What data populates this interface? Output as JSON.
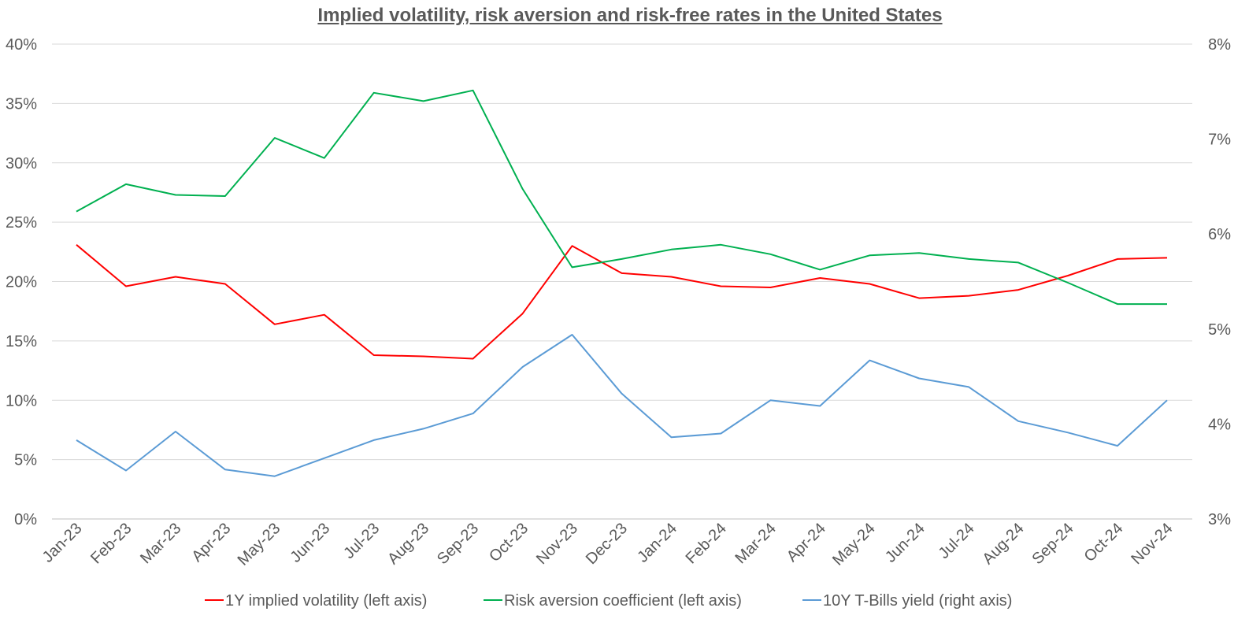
{
  "chart_data": {
    "type": "line",
    "title": "Implied volatility, risk aversion and risk-free rates in the United States",
    "categories": [
      "Jan-23",
      "Feb-23",
      "Mar-23",
      "Apr-23",
      "May-23",
      "Jun-23",
      "Jul-23",
      "Aug-23",
      "Sep-23",
      "Oct-23",
      "Nov-23",
      "Dec-23",
      "Jan-24",
      "Feb-24",
      "Mar-24",
      "Apr-24",
      "May-24",
      "Jun-24",
      "Jul-24",
      "Aug-24",
      "Sep-24",
      "Oct-24",
      "Nov-24"
    ],
    "left_axis": {
      "ylim": [
        0,
        0.4
      ],
      "ticks": [
        0,
        0.05,
        0.1,
        0.15,
        0.2,
        0.25,
        0.3,
        0.35,
        0.4
      ],
      "tick_labels": [
        "0%",
        "5%",
        "10%",
        "15%",
        "20%",
        "25%",
        "30%",
        "35%",
        "40%"
      ]
    },
    "right_axis": {
      "ylim": [
        0.03,
        0.08
      ],
      "ticks": [
        0.03,
        0.04,
        0.05,
        0.06,
        0.07,
        0.08
      ],
      "tick_labels": [
        "3%",
        "4%",
        "5%",
        "6%",
        "7%",
        "8%"
      ]
    },
    "grid": true,
    "legend_position": "bottom",
    "series": [
      {
        "name": "1Y implied volatility (left axis)",
        "axis": "left",
        "color": "#ff0000",
        "values": [
          0.231,
          0.196,
          0.204,
          0.198,
          0.164,
          0.172,
          0.138,
          0.137,
          0.135,
          0.173,
          0.23,
          0.207,
          0.204,
          0.196,
          0.195,
          0.203,
          0.198,
          0.186,
          0.188,
          0.193,
          0.205,
          0.219,
          0.22
        ]
      },
      {
        "name": "Risk aversion coefficient (left axis)",
        "axis": "left",
        "color": "#00b050",
        "values": [
          0.259,
          0.282,
          0.273,
          0.272,
          0.321,
          0.304,
          0.359,
          0.352,
          0.361,
          0.278,
          0.212,
          0.219,
          0.227,
          0.231,
          0.223,
          0.21,
          0.222,
          0.224,
          0.219,
          0.216,
          0.199,
          0.181,
          0.181
        ]
      },
      {
        "name": "10Y T-Bills yield (right axis)",
        "axis": "right",
        "color": "#5b9bd5",
        "values": [
          0.0383,
          0.0351,
          0.0392,
          0.0352,
          0.0345,
          0.0364,
          0.0383,
          0.0395,
          0.0411,
          0.046,
          0.0494,
          0.0432,
          0.0386,
          0.039,
          0.0425,
          0.0419,
          0.0467,
          0.0448,
          0.0439,
          0.0403,
          0.0391,
          0.0377,
          0.0425
        ]
      }
    ]
  }
}
